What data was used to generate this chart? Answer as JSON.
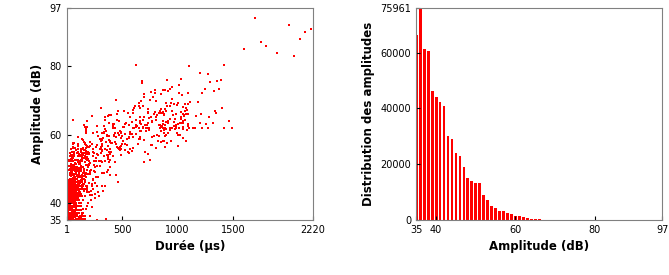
{
  "scatter_color": "#FF0000",
  "scatter_marker": "s",
  "scatter_marker_size": 2.5,
  "scatter_xlim": [
    1,
    2220
  ],
  "scatter_ylim": [
    35,
    97
  ],
  "scatter_xlabel": "Durée (µs)",
  "scatter_ylabel": "Amplitude (dB)",
  "scatter_xticks": [
    1,
    500,
    1000,
    1500,
    2220
  ],
  "scatter_xticklabels": [
    "1",
    "500",
    "1000",
    "1500",
    "2220"
  ],
  "scatter_yticks": [
    35,
    40,
    60,
    80,
    97
  ],
  "scatter_yticklabels": [
    "35",
    "40",
    "60",
    "80",
    "97"
  ],
  "hist_color": "#FF0000",
  "hist_xlim": [
    35,
    97
  ],
  "hist_ylim": [
    0,
    75961
  ],
  "hist_xlabel": "Amplitude (dB)",
  "hist_ylabel": "Distribution des amplitudes",
  "hist_xticks": [
    35,
    40,
    60,
    80,
    97
  ],
  "hist_xticklabels": [
    "35",
    "40",
    "60",
    "80",
    "97"
  ],
  "hist_yticks": [
    0,
    20000,
    40000,
    60000,
    75961
  ],
  "hist_yticklabels": [
    "0",
    "20000",
    "40000",
    "60000",
    "75961"
  ],
  "bar_values": [
    66500,
    75961,
    61200,
    60800,
    46200,
    44100,
    42300,
    41000,
    30200,
    29100,
    24200,
    23100,
    19100,
    15200,
    14100,
    13300,
    13100,
    9100,
    7100,
    5100,
    4200,
    3300,
    3100,
    2600,
    2100,
    1600,
    1300,
    950,
    650,
    430,
    310,
    210,
    160,
    110,
    85,
    62,
    42,
    32,
    22,
    16,
    11,
    9,
    6,
    5,
    4,
    3,
    2,
    2,
    1,
    1,
    1,
    1,
    1,
    1,
    1,
    1,
    1,
    1,
    1,
    1,
    1,
    1
  ],
  "bar_positions": [
    35,
    36,
    37,
    38,
    39,
    40,
    41,
    42,
    43,
    44,
    45,
    46,
    47,
    48,
    49,
    50,
    51,
    52,
    53,
    54,
    55,
    56,
    57,
    58,
    59,
    60,
    61,
    62,
    63,
    64,
    65,
    66,
    67,
    68,
    69,
    70,
    71,
    72,
    73,
    74,
    75,
    76,
    77,
    78,
    79,
    80,
    81,
    82,
    83,
    84,
    85,
    86,
    87,
    88,
    89,
    90,
    91,
    92,
    93,
    94,
    95,
    96
  ],
  "bar_width": 0.7
}
